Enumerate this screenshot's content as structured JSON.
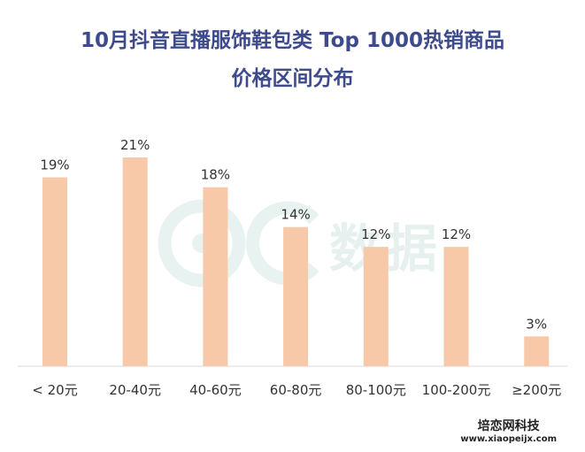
{
  "chart_data": {
    "type": "bar",
    "title_line1": "10月抖音直播服饰鞋包类 Top 1000热销商品",
    "title_line2": "价格区间分布",
    "categories": [
      "< 20元",
      "20-40元",
      "40-60元",
      "60-80元",
      "80-100元",
      "100-200元",
      "≥200元"
    ],
    "values": [
      19,
      21,
      18,
      14,
      12,
      12,
      3
    ],
    "value_labels": [
      "19%",
      "21%",
      "18%",
      "14%",
      "12%",
      "12%",
      "3%"
    ],
    "unit": "%",
    "ylim": [
      0,
      21
    ],
    "grid": false,
    "bar_color": "#f7c9a9"
  },
  "watermark": {
    "text": "数据"
  },
  "footer": {
    "brand": "培恋网科技",
    "url": "www.xiaopeijx.com"
  }
}
